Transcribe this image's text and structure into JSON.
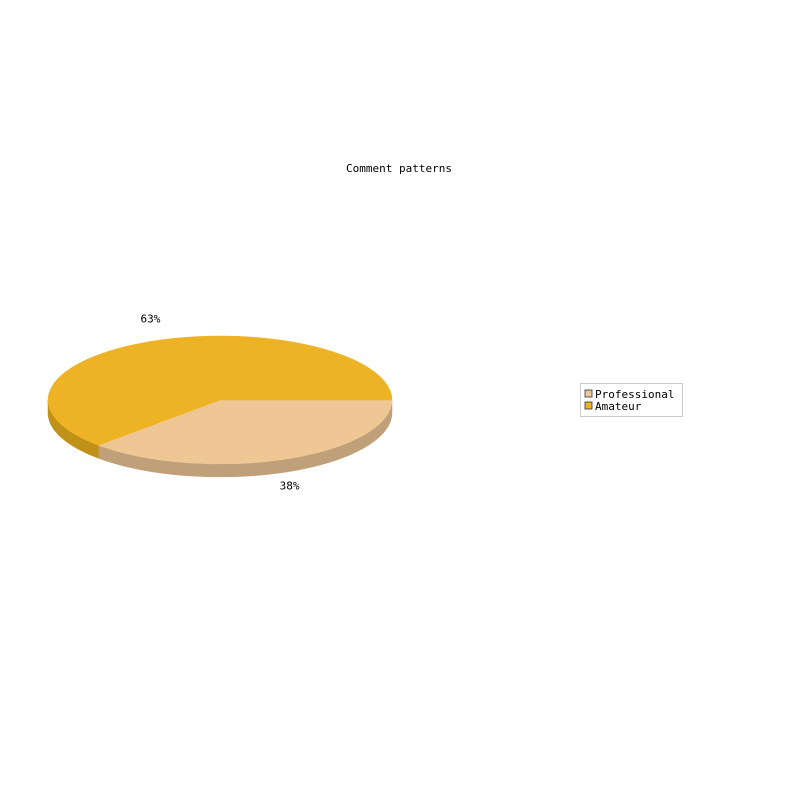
{
  "chart_data": {
    "type": "pie",
    "title": "Comment patterns",
    "three_d": true,
    "legend_position": "right",
    "slices": [
      {
        "name": "Professional",
        "value": 37.5,
        "label": "38%",
        "color": "#EEC795",
        "side_color": "#C0A078"
      },
      {
        "name": "Amateur",
        "value": 62.5,
        "label": "63%",
        "color": "#EDB324",
        "side_color": "#C09118"
      }
    ]
  }
}
